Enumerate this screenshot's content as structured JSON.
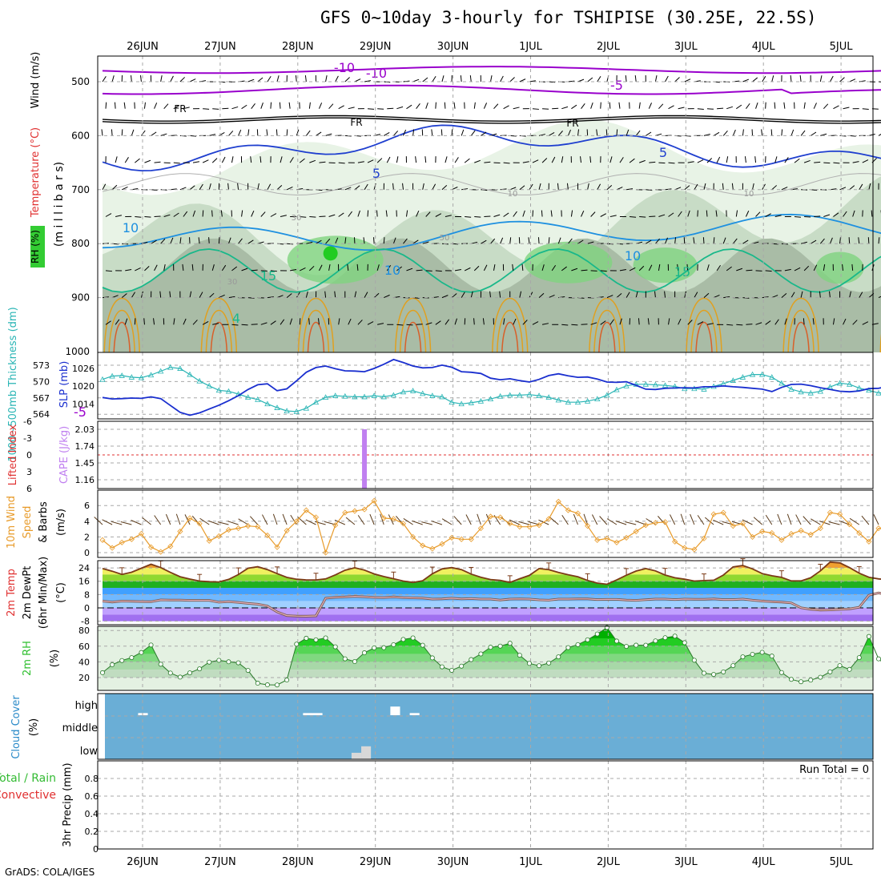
{
  "title": "GFS 0~10day 3-hourly for TSHIPISE (30.25E, 22.5S)",
  "footer": "GrADS: COLA/IGES",
  "dates": [
    "26JUN",
    "27JUN",
    "28JUN",
    "29JUN",
    "30JUN",
    "1JUL",
    "2JUL",
    "3JUL",
    "4JUL",
    "5JUL"
  ],
  "colors": {
    "grid": "#a8a8a8",
    "purple": "#9900cc",
    "blue": "#1f3fcf",
    "skyblue": "#1e90e0",
    "teal": "#19b88a",
    "orange": "#e0a020",
    "cyan": "#2ab5b5",
    "navy": "#1a2fcf",
    "cape": "#c080f0",
    "wind": "#e89b2a",
    "cloud": "#6aaed6",
    "rh_green": "#2fbf2f"
  },
  "chart_data": [
    {
      "type": "contour",
      "panel": "upper-air",
      "ylabel_parts": [
        {
          "text": "Wind (m/s)",
          "color": "#000000"
        },
        {
          "text": "Temperature (°C)",
          "color": "#e03030"
        },
        {
          "text": "(m i l l i b a r s)",
          "color": "#000000"
        },
        {
          "text": "RH (%)",
          "color": "#000000"
        }
      ],
      "y_ticks": [
        500,
        600,
        700,
        800,
        900,
        1000
      ],
      "ylim": [
        1000,
        450
      ],
      "contour_labels": [
        {
          "text": "-10",
          "kind": "temp"
        },
        {
          "text": "-10",
          "kind": "temp"
        },
        {
          "text": "-5",
          "kind": "temp"
        },
        {
          "text": "-5",
          "kind": "temp"
        },
        {
          "text": "FR",
          "kind": "freeze"
        },
        {
          "text": "FR",
          "kind": "freeze"
        },
        {
          "text": "FR",
          "kind": "freeze"
        },
        {
          "text": "5",
          "kind": "temp"
        },
        {
          "text": "5",
          "kind": "temp"
        },
        {
          "text": "10",
          "kind": "temp"
        },
        {
          "text": "10",
          "kind": "temp"
        },
        {
          "text": "10",
          "kind": "temp"
        },
        {
          "text": "15",
          "kind": "temp"
        },
        {
          "text": "15",
          "kind": "temp"
        },
        {
          "text": "30",
          "kind": "rh"
        },
        {
          "text": "30",
          "kind": "rh"
        },
        {
          "text": "50",
          "kind": "rh"
        },
        {
          "text": "10",
          "kind": "rh"
        },
        {
          "text": "10",
          "kind": "rh"
        },
        {
          "text": "4",
          "kind": "temp"
        }
      ]
    },
    {
      "type": "line",
      "panel": "slp-thickness",
      "ylabel_left": "1000~500mb Thickness (dm)",
      "ylabel_right": "SLP (mb)",
      "thickness_ticks": [
        573,
        570,
        567,
        564
      ],
      "slp_ticks": [
        1026,
        1020,
        1014
      ],
      "series": [
        {
          "color": "#2ab5b5",
          "values": [
            570.4,
            571,
            571.1,
            570.8,
            570.7,
            571.2,
            571.9,
            572.6,
            572.4,
            571.3,
            570.1,
            569.2,
            568.4,
            568.2,
            567.7,
            567.1,
            566.7,
            565.9,
            565.2,
            564.6,
            564.5,
            565.1,
            566.2,
            567.1,
            567.4,
            567.3,
            567.2,
            567.2,
            567.4,
            567.2,
            567.5,
            568.1,
            568.3,
            567.8,
            567.4,
            567.2,
            566.2,
            565.9,
            566.1,
            566.4,
            566.8,
            567.3,
            567.5,
            567.5,
            567.6,
            567.4,
            567.1,
            566.6,
            566.2,
            566.2,
            566.4,
            566.8,
            567.5,
            568.5,
            569.2,
            569.5,
            569.5,
            569.4,
            569.3,
            569.1,
            568.7,
            568.7,
            568.6,
            569.1,
            569.6,
            570.2,
            570.8,
            571.3,
            571.3,
            570.8,
            569.7,
            568.6,
            568.1,
            567.9,
            568.2,
            569,
            569.7,
            569.5,
            568.8,
            568.4,
            567.9,
            568,
            568.5,
            568.3,
            567.9,
            567.4,
            566.4,
            565.7
          ]
        },
        {
          "color": "#1a2fcf",
          "values": [
            1016.2,
            1015.7,
            1015.8,
            1016,
            1015.9,
            1016.4,
            1015.8,
            1013.5,
            1011.2,
            1010.2,
            1011,
            1012.3,
            1013.6,
            1015.1,
            1016.8,
            1018.9,
            1020.5,
            1020.8,
            1018.5,
            1019.1,
            1021.8,
            1024.7,
            1026.3,
            1026.8,
            1025.9,
            1025.2,
            1025.1,
            1024.9,
            1026,
            1027.4,
            1029,
            1028,
            1026.8,
            1026.2,
            1026.3,
            1027.1,
            1026.4,
            1024.9,
            1024.7,
            1024.3,
            1022.7,
            1022.2,
            1022.5,
            1021.9,
            1021.4,
            1022.3,
            1023.6,
            1024.2,
            1023.5,
            1023,
            1023.1,
            1022.4,
            1021.4,
            1021.3,
            1021.5,
            1020.3,
            1019,
            1018.9,
            1019.3,
            1019.4,
            1019.5,
            1019.4,
            1019.8,
            1019.8,
            1020.1,
            1019.8,
            1019.6,
            1019.3,
            1019,
            1018.2,
            1019.6,
            1020.6,
            1020.7,
            1020.2,
            1019.5,
            1018.9,
            1018.3,
            1018.1,
            1018.4,
            1019.2,
            1019.3,
            1020,
            1020.5,
            1020.7,
            1020.7,
            1021.3,
            1022,
            1022.2
          ]
        }
      ]
    },
    {
      "type": "bar",
      "panel": "cape-li",
      "ylabel_left": "Lifted Index",
      "ylabel_right": "CAPE (J/kg)",
      "li_ticks": [
        "-6",
        "-3",
        "0",
        "3",
        "6"
      ],
      "cape_ticks": [
        "2.03",
        "1.74",
        "1.45",
        "1.16"
      ],
      "series": [
        {
          "color": "#c080f0",
          "values": [
            {
              "i": 27,
              "v": 2.03
            }
          ]
        }
      ]
    },
    {
      "type": "line",
      "panel": "wind10m",
      "ylabel": "10m Wind Speed & Barbs (m/s)",
      "y_ticks": [
        6,
        4,
        2,
        0
      ],
      "ylim": [
        0,
        7
      ],
      "series": [
        {
          "color": "#e89b2a",
          "values": [
            1.6,
            0.6,
            1.3,
            1.7,
            2.4,
            0.7,
            0.1,
            0.8,
            2.7,
            4.4,
            3.7,
            1.5,
            2.1,
            2.9,
            3.1,
            3.4,
            3.3,
            2.2,
            0.7,
            2.8,
            4,
            5.4,
            4.5,
            0,
            3.5,
            5.1,
            5.3,
            5.5,
            6.6,
            4.4,
            4.3,
            3.7,
            2,
            0.9,
            0.5,
            1.1,
            1.9,
            1.7,
            1.7,
            3.1,
            4.6,
            4.5,
            3.7,
            3.3,
            3.3,
            3.5,
            4.3,
            6.5,
            5.4,
            5,
            3.4,
            1.6,
            1.8,
            1.3,
            1.9,
            2.7,
            3.5,
            3.8,
            3.9,
            1.4,
            0.6,
            0.4,
            1.8,
            4.9,
            5.1,
            3.4,
            3.7,
            2,
            2.7,
            2.5,
            1.6,
            2.4,
            2.8,
            2.3,
            3.1,
            5.1,
            4.9,
            3.6,
            2.5,
            1.4,
            3.1,
            3.1,
            2.5,
            5.3,
            5.5,
            4.1,
            2.3,
            2.9
          ]
        }
      ]
    },
    {
      "type": "area",
      "panel": "temp2m",
      "ylabel": "2m Temp 2m DewPt (6hr Min/Max) (°C)",
      "y_ticks": [
        "24",
        "16",
        "8",
        "0",
        "-8"
      ],
      "ylim": [
        -8,
        28
      ],
      "series": [
        {
          "color": "#7b3a17",
          "values": [
            23.6,
            22,
            20.1,
            21.4,
            23.8,
            26.2,
            24.2,
            21.3,
            18.7,
            17.3,
            16.1,
            15.7,
            15.6,
            17.1,
            20,
            23.8,
            24.7,
            23,
            20.6,
            18.3,
            17.2,
            16.8,
            16.8,
            17.4,
            19.8,
            22.6,
            24.1,
            22.7,
            20.4,
            18.8,
            17.5,
            16.1,
            15.3,
            16.3,
            20.5,
            23.4,
            24.2,
            23,
            20.3,
            18.4,
            17,
            16.5,
            15.3,
            17.5,
            19.5,
            23.6,
            23,
            21.3,
            19.9,
            18.7,
            16.5,
            14.9,
            14.2,
            16.8,
            19.6,
            22.1,
            23.6,
            22.2,
            19.7,
            18.1,
            17.2,
            16.1,
            16.4,
            16.6,
            19.7,
            24.6,
            25.5,
            23.4,
            20.6,
            19.3,
            18.3,
            16.2,
            16.2,
            18.1,
            22.2,
            27.5,
            27,
            24.2,
            20.8,
            18.4,
            17.4,
            16.9,
            15.8,
            17.3,
            20.4,
            23.4,
            24.4,
            23.1
          ]
        },
        {
          "color": "#e6b0c0",
          "values": [
            4.1,
            3.5,
            4.1,
            4,
            3.8,
            3.7,
            4.8,
            4.7,
            4.7,
            4.5,
            4.5,
            4.5,
            3.4,
            3.8,
            3.3,
            2.7,
            2.2,
            1.1,
            -2.4,
            -4.6,
            -4.9,
            -5,
            -4.8,
            5.8,
            6.4,
            6.6,
            6.9,
            6.7,
            6.3,
            6.2,
            6.6,
            6.2,
            6,
            5.9,
            5.3,
            5.4,
            5.8,
            5.4,
            5.6,
            5.3,
            5.3,
            4.7,
            5.3,
            5.4,
            5.3,
            4.8,
            4.6,
            5.3,
            5.3,
            5.4,
            5.4,
            5,
            5.1,
            5.1,
            4.7,
            4.5,
            4.9,
            5.3,
            5.3,
            5,
            5.3,
            5.2,
            5.2,
            5.4,
            5,
            5,
            5.3,
            4.6,
            4.1,
            3.7,
            3.5,
            3,
            0.1,
            -0.8,
            -1.3,
            -1.2,
            -0.9,
            -0.6,
            0.4,
            7.6,
            9,
            7.7,
            6.7,
            6.1,
            6.6,
            6.7,
            6.4,
            6.1
          ]
        }
      ]
    },
    {
      "type": "area",
      "panel": "rh2m",
      "ylabel": "2m RH (%)",
      "y_ticks": [
        80,
        60,
        40,
        20
      ],
      "ylim": [
        0,
        85
      ],
      "series": [
        {
          "color": "#2fbf2f",
          "values": [
            26.2,
            36.4,
            41.7,
            45.4,
            52,
            61.5,
            37,
            25.8,
            20.6,
            26,
            31.1,
            39.7,
            42,
            40.1,
            38.8,
            29.1,
            12.8,
            10.8,
            10.6,
            16.9,
            62.6,
            70.1,
            68.1,
            70.5,
            59.2,
            43.9,
            40.4,
            51.6,
            57.8,
            58.1,
            61.9,
            68.6,
            70.5,
            61.2,
            45.1,
            33.7,
            29.2,
            34.6,
            42.9,
            50.1,
            58.6,
            60.1,
            63.7,
            48.5,
            38.1,
            35.1,
            38.5,
            46.4,
            58.2,
            62,
            68.1,
            75.5,
            83.8,
            66.5,
            59.7,
            61.3,
            61.2,
            66.7,
            70.8,
            72.8,
            64.5,
            42.1,
            25.6,
            24,
            27.2,
            35.2,
            46.4,
            49.6,
            52.2,
            47.4,
            26.4,
            17.7,
            14.7,
            16.8,
            20.4,
            27.3,
            35.2,
            30.4,
            45.4,
            72.4,
            43.8,
            32.8,
            35.8,
            44.8,
            52.9,
            57.4,
            66,
            53.5
          ]
        }
      ]
    },
    {
      "type": "heatmap",
      "panel": "cloud",
      "ylabel": "Cloud Cover (%)",
      "rows": [
        "high",
        "middle",
        "low"
      ],
      "series": [
        {
          "color": "#ffffff",
          "values": [
            {
              "row": "high",
              "i": 4,
              "frac": 0.1
            },
            {
              "row": "high",
              "i": 21,
              "frac": 0.1
            },
            {
              "row": "high",
              "i": 22,
              "frac": 0.1
            },
            {
              "row": "high",
              "i": 30,
              "frac": 0.4
            },
            {
              "row": "high",
              "i": 32,
              "frac": 0.1
            },
            {
              "row": "low",
              "i": 26,
              "frac": 0.3
            },
            {
              "row": "low",
              "i": 27,
              "frac": 0.6
            }
          ]
        }
      ]
    },
    {
      "type": "bar",
      "panel": "precip",
      "ylabel_parts": [
        {
          "text": "Total / Rain",
          "color": "#33bb33"
        },
        {
          "text": "Convective",
          "color": "#e03030"
        },
        {
          "text": "3hr Precip (mm)",
          "color": "#000000"
        }
      ],
      "y_ticks": [
        "0.8",
        "0.6",
        "0.4",
        "0.2",
        "0"
      ],
      "ylim": [
        0,
        0.9
      ],
      "run_total": "Run Total = 0",
      "series": [
        {
          "name": "",
          "values": []
        }
      ]
    }
  ]
}
